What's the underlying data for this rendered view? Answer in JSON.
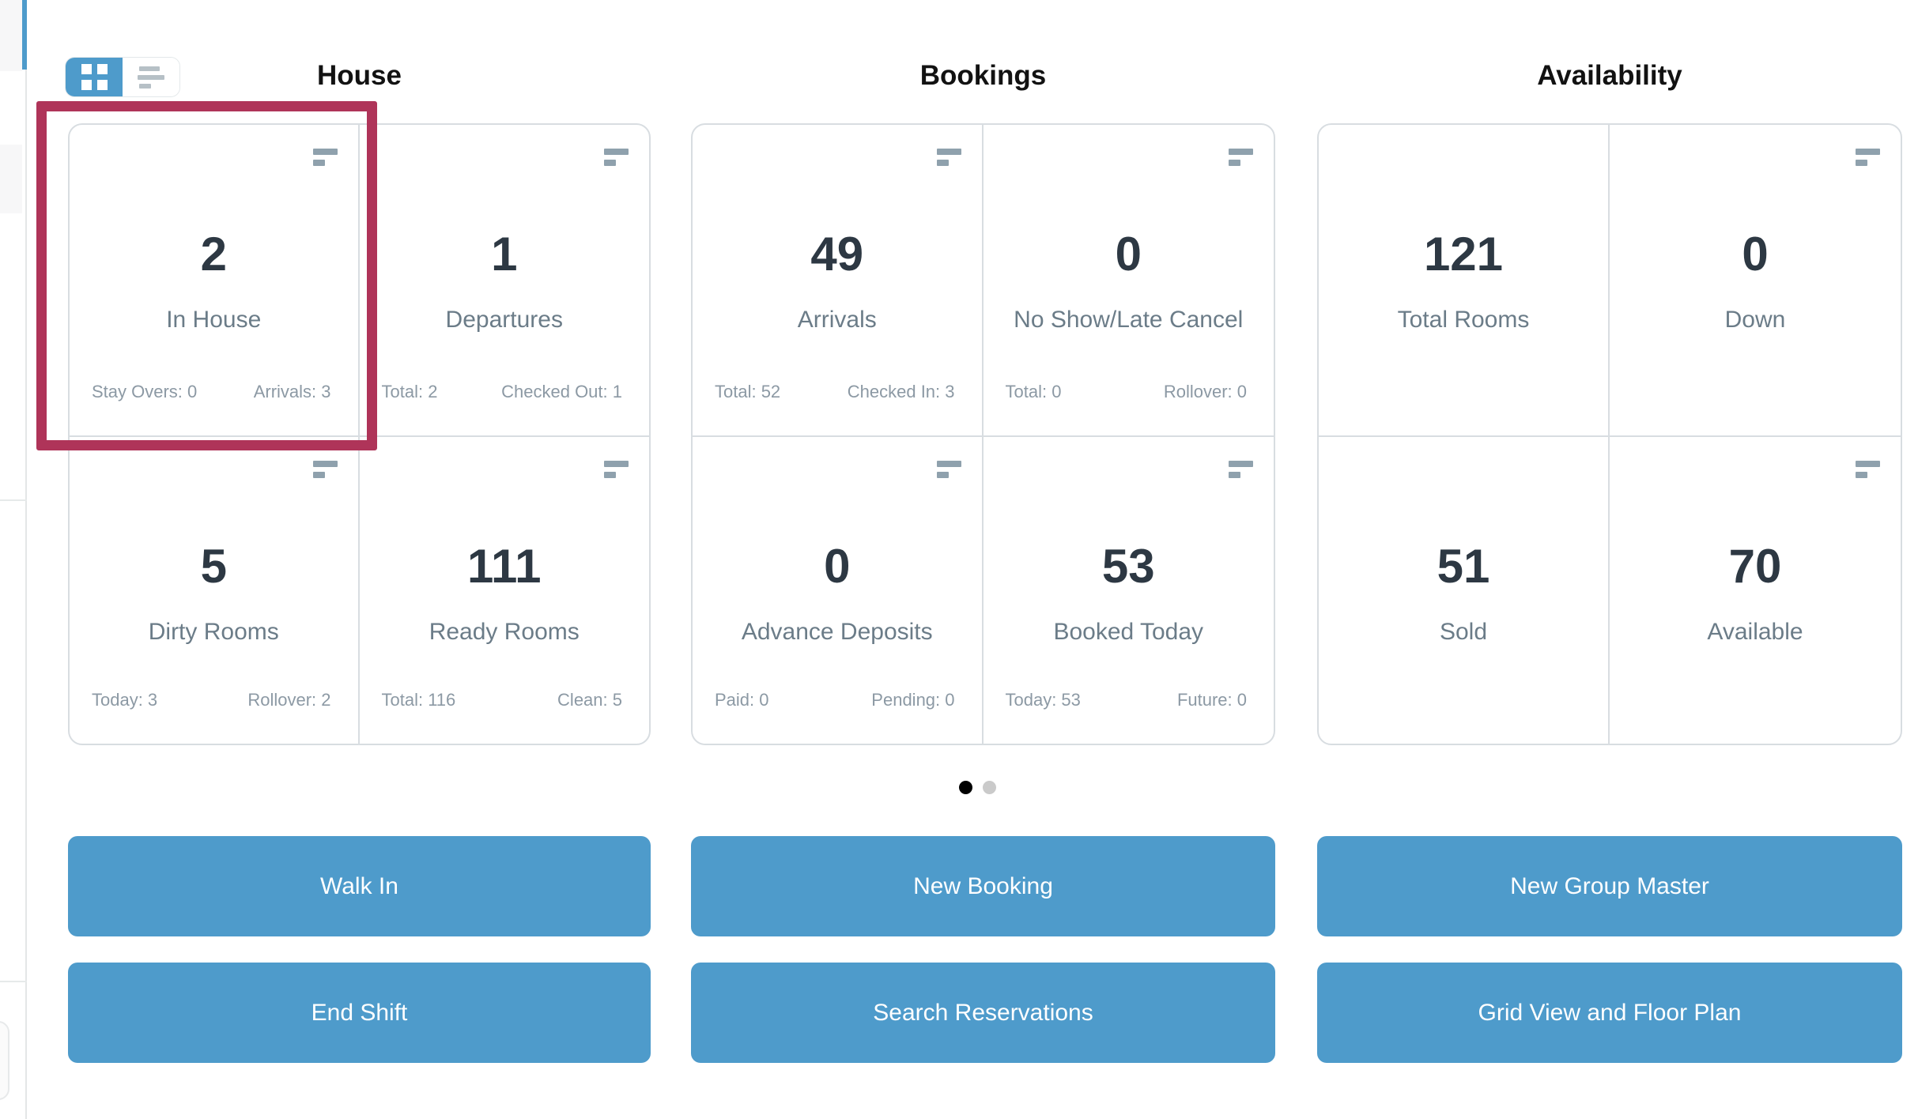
{
  "view_toggle": {
    "active": "grid"
  },
  "sections": [
    {
      "title": "House",
      "cards": [
        {
          "value": "2",
          "label": "In House",
          "stat_left": "Stay Overs: 0",
          "stat_right": "Arrivals: 3",
          "highlighted": true
        },
        {
          "value": "1",
          "label": "Departures",
          "stat_left": "Total: 2",
          "stat_right": "Checked Out: 1"
        },
        {
          "value": "5",
          "label": "Dirty Rooms",
          "stat_left": "Today: 3",
          "stat_right": "Rollover: 2"
        },
        {
          "value": "111",
          "label": "Ready Rooms",
          "stat_left": "Total: 116",
          "stat_right": "Clean: 5"
        }
      ]
    },
    {
      "title": "Bookings",
      "cards": [
        {
          "value": "49",
          "label": "Arrivals",
          "stat_left": "Total: 52",
          "stat_right": "Checked In: 3"
        },
        {
          "value": "0",
          "label": "No Show/Late Cancel",
          "stat_left": "Total: 0",
          "stat_right": "Rollover: 0"
        },
        {
          "value": "0",
          "label": "Advance Deposits",
          "stat_left": "Paid: 0",
          "stat_right": "Pending: 0"
        },
        {
          "value": "53",
          "label": "Booked Today",
          "stat_left": "Today: 53",
          "stat_right": "Future: 0"
        }
      ]
    },
    {
      "title": "Availability",
      "cards": [
        {
          "value": "121",
          "label": "Total Rooms"
        },
        {
          "value": "0",
          "label": "Down"
        },
        {
          "value": "51",
          "label": "Sold"
        },
        {
          "value": "70",
          "label": "Available"
        }
      ]
    }
  ],
  "pagination": {
    "page_count": 2,
    "active_page": 1
  },
  "actions": {
    "walk_in": "Walk In",
    "new_booking": "New Booking",
    "new_group_master": "New Group Master",
    "end_shift": "End Shift",
    "search_reservations": "Search Reservations",
    "grid_view_floor_plan": "Grid View and Floor Plan"
  },
  "colors": {
    "accent_blue": "#4E9BCB",
    "highlight_red": "#AF3459",
    "number_text": "#2D3843",
    "label_text": "#6B7C88",
    "stat_text": "#8C99A4",
    "card_border": "#D8DDE1",
    "active_dot": "#000000",
    "inactive_dot": "#CACACA"
  }
}
